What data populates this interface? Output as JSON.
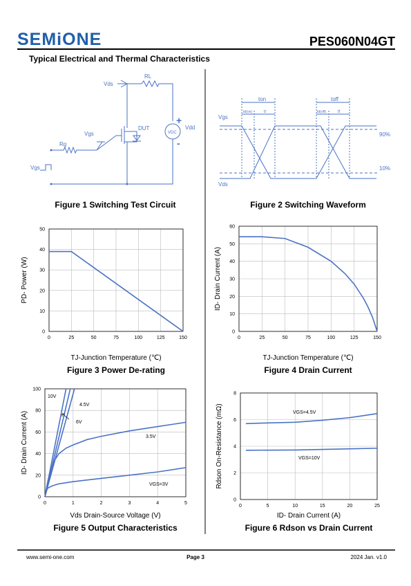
{
  "header": {
    "logo": "SEMiONE",
    "part_number": "PES060N04GT",
    "section_title": "Typical Electrical and Thermal Characteristics"
  },
  "diagrams": {
    "figure1": {
      "caption": "Figure 1 Switching Test Circuit",
      "labels": [
        "Vds",
        "RL",
        "Vgs",
        "DUT",
        "Rg",
        "Vdd",
        "VDC",
        "Vgs",
        "+",
        "-"
      ]
    },
    "figure2": {
      "caption": "Figure 2 Switching Waveform",
      "labels": [
        "ton",
        "toff",
        "td(on)",
        "tr",
        "td(off)",
        "tf",
        "Vgs",
        "Vds",
        "90%",
        "10%"
      ]
    }
  },
  "chart_data": [
    {
      "type": "line",
      "caption": "Figure 3 Power De-rating",
      "xlabel": "TJ-Junction Temperature (℃)",
      "ylabel": "PD- Power (W)",
      "xlim": [
        0,
        150
      ],
      "xticks": [
        0,
        25,
        50,
        75,
        100,
        125,
        150
      ],
      "ylim": [
        0,
        50
      ],
      "yticks": [
        0,
        10,
        20,
        30,
        40,
        50
      ],
      "grid": true,
      "series": [
        {
          "color": "#4a72c4",
          "x": [
            0,
            25,
            150
          ],
          "values": [
            39,
            39,
            0
          ]
        }
      ]
    },
    {
      "type": "line",
      "caption": "Figure 4 Drain Current",
      "xlabel": "TJ-Junction Temperature (℃)",
      "ylabel": "ID- Drain Current (A)",
      "xlim": [
        0,
        150
      ],
      "xticks": [
        0,
        25,
        50,
        75,
        100,
        125,
        150
      ],
      "ylim": [
        0,
        60
      ],
      "yticks": [
        0,
        10,
        20,
        30,
        40,
        50,
        60
      ],
      "grid": true,
      "series": [
        {
          "color": "#4a72c4",
          "x": [
            0,
            25,
            50,
            75,
            100,
            115,
            125,
            135,
            140,
            145,
            150
          ],
          "values": [
            54,
            54,
            53,
            48,
            40,
            33,
            27,
            19,
            14,
            8,
            0
          ]
        }
      ]
    },
    {
      "type": "line",
      "caption": "Figure 5 Output Characteristics",
      "xlabel": "Vds Drain-Source Voltage (V)",
      "ylabel": "ID- Drain Current (A)",
      "xlim": [
        0,
        5
      ],
      "xticks": [
        0,
        1,
        2,
        3,
        4,
        5
      ],
      "ylim": [
        0,
        100
      ],
      "yticks": [
        0,
        20,
        40,
        60,
        80,
        100
      ],
      "grid": true,
      "series": [
        {
          "name": "10V",
          "color": "#4a72c4",
          "x": [
            0,
            0.75
          ],
          "values": [
            0,
            100
          ]
        },
        {
          "name": "6V",
          "color": "#4a72c4",
          "x": [
            0,
            0.9
          ],
          "values": [
            0,
            100
          ]
        },
        {
          "name": "4.5V",
          "color": "#4a72c4",
          "x": [
            0,
            1.05
          ],
          "values": [
            0,
            100
          ]
        },
        {
          "name": "3.5V",
          "color": "#4a72c4",
          "x": [
            0,
            0.1,
            0.2,
            0.35,
            0.5,
            0.75,
            1,
            1.5,
            2,
            3,
            4,
            5
          ],
          "values": [
            0,
            14,
            25,
            34,
            40,
            45,
            48,
            53,
            56,
            61,
            65,
            69
          ]
        },
        {
          "name": "VGS=3V",
          "color": "#4a72c4",
          "x": [
            0,
            0.05,
            0.1,
            0.25,
            0.5,
            1,
            2,
            3,
            4,
            5
          ],
          "values": [
            0,
            5,
            8,
            10,
            12,
            14,
            17,
            20,
            23,
            27
          ]
        }
      ]
    },
    {
      "type": "line",
      "caption": "Figure 6 Rdson vs Drain Current",
      "xlabel": "ID- Drain Current (A)",
      "ylabel": "Rdson On-Resistance (mΩ)",
      "xlim": [
        0,
        25
      ],
      "xticks": [
        0,
        5,
        10,
        15,
        20,
        25
      ],
      "ylim": [
        0,
        8
      ],
      "yticks": [
        0,
        2,
        4,
        6,
        8
      ],
      "grid": true,
      "series": [
        {
          "name": "VGS=4.5V",
          "color": "#4a72c4",
          "x": [
            1,
            5,
            10,
            15,
            20,
            25
          ],
          "values": [
            5.7,
            5.75,
            5.8,
            5.95,
            6.15,
            6.45
          ]
        },
        {
          "name": "VGS=10V",
          "color": "#4a72c4",
          "x": [
            1,
            10,
            25
          ],
          "values": [
            3.7,
            3.72,
            3.85
          ]
        }
      ]
    }
  ],
  "footer": {
    "website": "www.semi-one.com",
    "page": "Page 3",
    "version": "2024 Jan. v1.0"
  }
}
